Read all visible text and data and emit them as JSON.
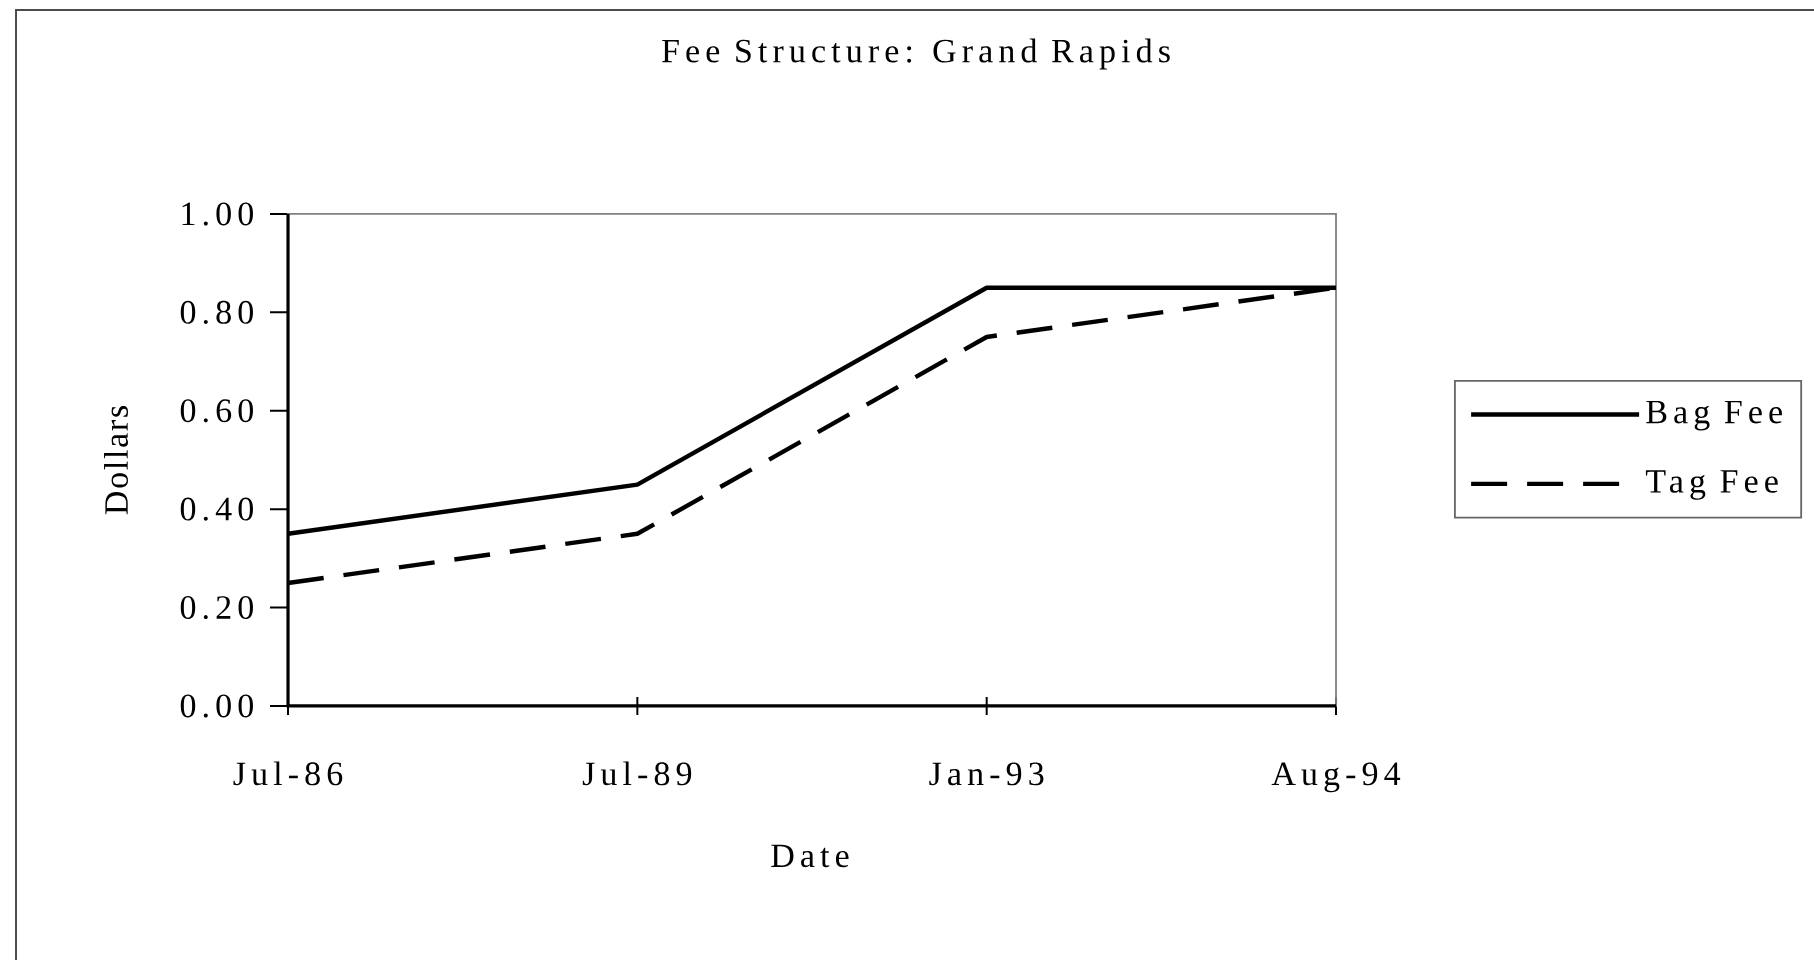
{
  "chart_data": {
    "type": "line",
    "title": "Fee Structure: Grand Rapids",
    "xlabel": "Date",
    "ylabel": "Dollars",
    "categories": [
      "Jul-86",
      "Jul-89",
      "Jan-93",
      "Aug-94"
    ],
    "series": [
      {
        "name": "Bag Fee",
        "color": "#000000",
        "line_style": "solid",
        "values": [
          0.35,
          0.45,
          0.85,
          0.85
        ]
      },
      {
        "name": "Tag Fee",
        "color": "#000000",
        "line_style": "dashed",
        "values": [
          0.25,
          0.35,
          0.75,
          0.85
        ]
      }
    ],
    "ylim": [
      0,
      1
    ],
    "yticks": [
      {
        "value": 0,
        "label": "0.00"
      },
      {
        "value": 0.2,
        "label": "0.20"
      },
      {
        "value": 0.4,
        "label": "0.40"
      },
      {
        "value": 0.6,
        "label": "0.60"
      },
      {
        "value": 0.8,
        "label": "0.80"
      },
      {
        "value": 1,
        "label": "1.00"
      }
    ],
    "legend": "right"
  }
}
